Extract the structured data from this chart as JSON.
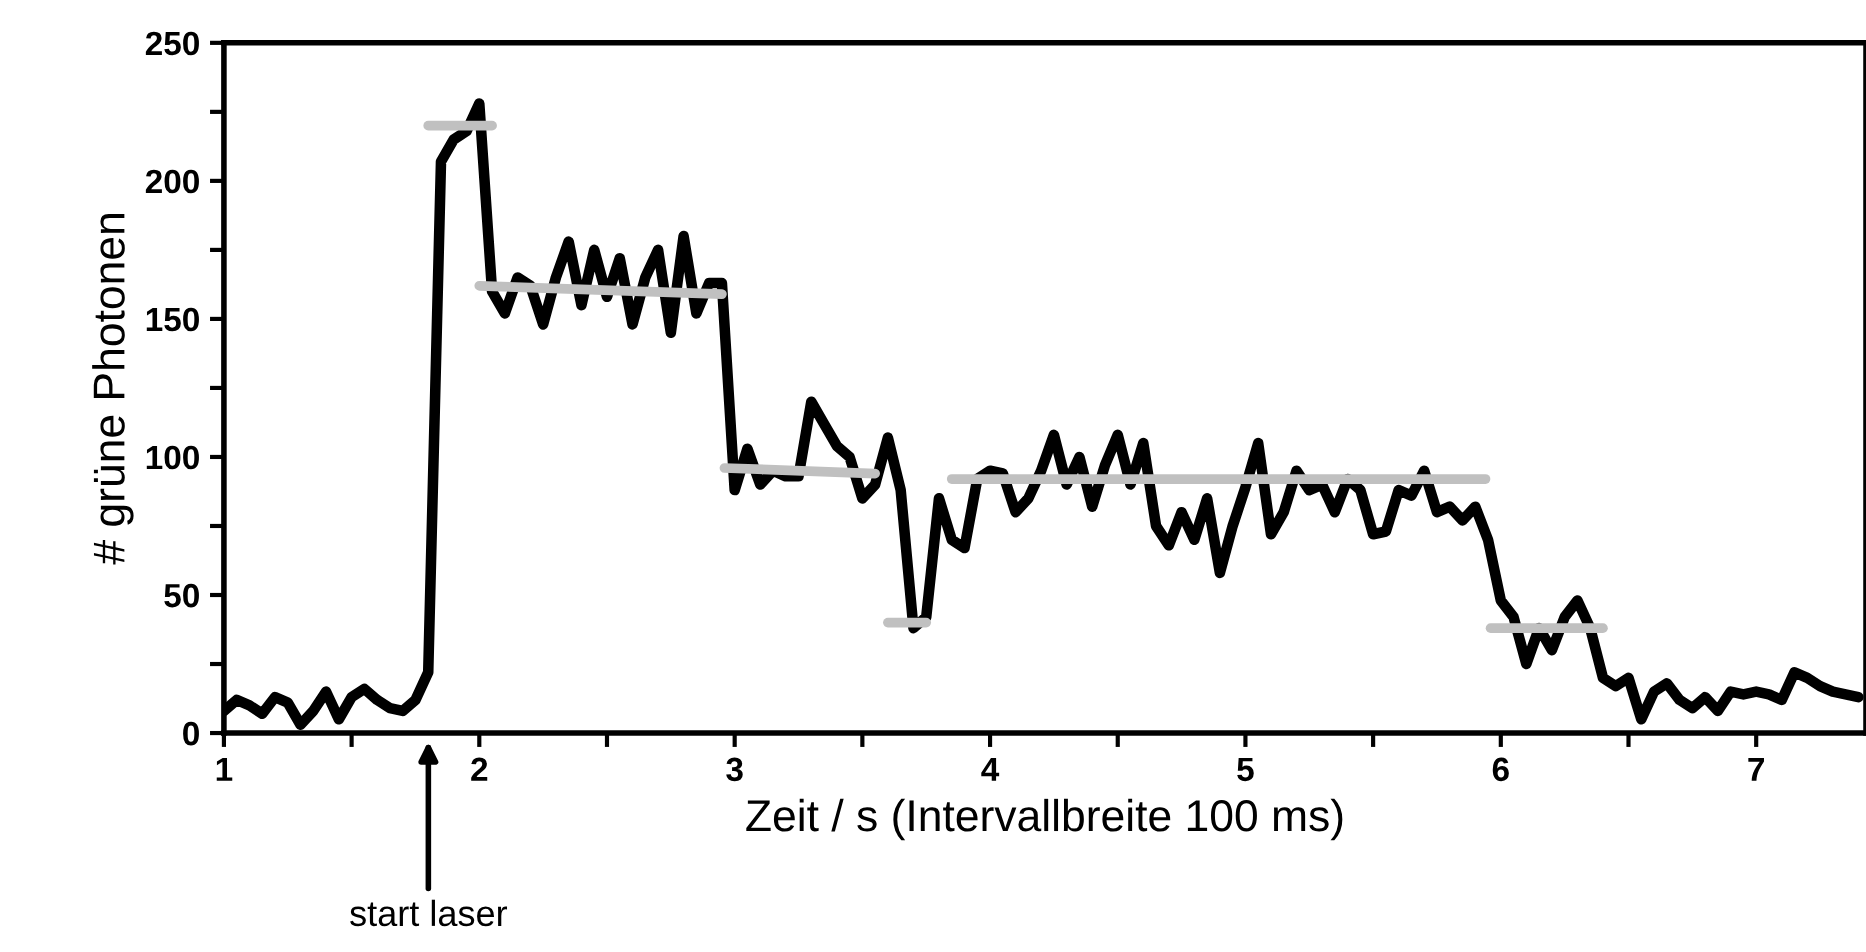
{
  "chart_data": {
    "type": "line",
    "xlabel": "Zeit / s (Intervallbreite 100 ms)",
    "ylabel": "# grüne Photonen",
    "xlim": [
      1,
      7.43
    ],
    "ylim": [
      0,
      250
    ],
    "xticks": [
      1,
      {
        "value": 1.5,
        "label": null
      },
      2,
      {
        "value": 2.5,
        "label": null
      },
      3,
      {
        "value": 3.5,
        "label": null
      },
      4,
      {
        "value": 4.5,
        "label": null
      },
      5,
      {
        "value": 5.5,
        "label": null
      },
      6,
      {
        "value": 6.5,
        "label": null
      },
      7
    ],
    "yticks": [
      0,
      {
        "value": 25,
        "label": null
      },
      50,
      {
        "value": 75,
        "label": null
      },
      100,
      {
        "value": 125,
        "label": null
      },
      150,
      {
        "value": 175,
        "label": null
      },
      200,
      {
        "value": 225,
        "label": null
      },
      250
    ],
    "grid": false,
    "legend": false,
    "marker": "none",
    "line_style": "solid",
    "annotations": [
      "start laser"
    ],
    "series": [
      {
        "color": "#000000",
        "x": [
          1.0,
          1.05,
          1.1,
          1.15,
          1.2,
          1.25,
          1.3,
          1.35,
          1.4,
          1.45,
          1.5,
          1.55,
          1.6,
          1.65,
          1.7,
          1.75,
          1.8,
          1.85,
          1.9,
          1.95,
          2.0,
          2.05,
          2.1,
          2.15,
          2.2,
          2.25,
          2.3,
          2.35,
          2.4,
          2.45,
          2.5,
          2.55,
          2.6,
          2.65,
          2.7,
          2.75,
          2.8,
          2.85,
          2.9,
          2.95,
          3.0,
          3.05,
          3.1,
          3.15,
          3.2,
          3.25,
          3.3,
          3.35,
          3.4,
          3.45,
          3.5,
          3.55,
          3.6,
          3.65,
          3.7,
          3.75,
          3.8,
          3.85,
          3.9,
          3.95,
          4.0,
          4.05,
          4.1,
          4.15,
          4.2,
          4.25,
          4.3,
          4.35,
          4.4,
          4.45,
          4.5,
          4.55,
          4.6,
          4.65,
          4.7,
          4.75,
          4.8,
          4.85,
          4.9,
          4.95,
          5.0,
          5.05,
          5.1,
          5.15,
          5.2,
          5.25,
          5.3,
          5.35,
          5.4,
          5.45,
          5.5,
          5.55,
          5.6,
          5.65,
          5.7,
          5.75,
          5.8,
          5.85,
          5.9,
          5.95,
          6.0,
          6.05,
          6.1,
          6.15,
          6.2,
          6.25,
          6.3,
          6.35,
          6.4,
          6.45,
          6.5,
          6.55,
          6.6,
          6.65,
          6.7,
          6.75,
          6.8,
          6.85,
          6.9,
          6.95,
          7.0,
          7.05,
          7.1,
          7.15,
          7.2,
          7.25,
          7.3,
          7.35,
          7.4
        ],
        "values": [
          8,
          12,
          10,
          7,
          13,
          11,
          3,
          8,
          15,
          5,
          13,
          16,
          12,
          9,
          8,
          12,
          22,
          207,
          215,
          218,
          228,
          160,
          152,
          165,
          162,
          148,
          165,
          178,
          155,
          175,
          158,
          172,
          148,
          165,
          175,
          145,
          180,
          152,
          163,
          163,
          88,
          103,
          90,
          95,
          93,
          93,
          120,
          112,
          104,
          100,
          85,
          90,
          107,
          88,
          38,
          42,
          85,
          70,
          67,
          92,
          95,
          94,
          80,
          85,
          95,
          108,
          90,
          100,
          82,
          97,
          108,
          90,
          105,
          75,
          68,
          80,
          70,
          85,
          58,
          75,
          89,
          105,
          72,
          80,
          95,
          88,
          90,
          80,
          92,
          88,
          72,
          73,
          88,
          86,
          95,
          80,
          82,
          77,
          82,
          70,
          48,
          42,
          25,
          38,
          30,
          42,
          48,
          38,
          20,
          17,
          20,
          5,
          15,
          18,
          12,
          9,
          13,
          8,
          15,
          14,
          15,
          14,
          12,
          22,
          20,
          17,
          15,
          14,
          13
        ]
      },
      {
        "color": "#c0c0c0",
        "x": [
          1.8,
          2.05
        ],
        "values": [
          220,
          220
        ]
      },
      {
        "color": "#c0c0c0",
        "x": [
          2.0,
          2.95
        ],
        "values": [
          162,
          159
        ]
      },
      {
        "color": "#c0c0c0",
        "x": [
          2.96,
          3.55
        ],
        "values": [
          96,
          94
        ]
      },
      {
        "color": "#c0c0c0",
        "x": [
          3.6,
          3.75
        ],
        "values": [
          40,
          40
        ]
      },
      {
        "color": "#c0c0c0",
        "x": [
          3.85,
          5.94
        ],
        "values": [
          92,
          92
        ]
      },
      {
        "color": "#c0c0c0",
        "x": [
          5.96,
          6.4
        ],
        "values": [
          38,
          38
        ]
      }
    ]
  }
}
